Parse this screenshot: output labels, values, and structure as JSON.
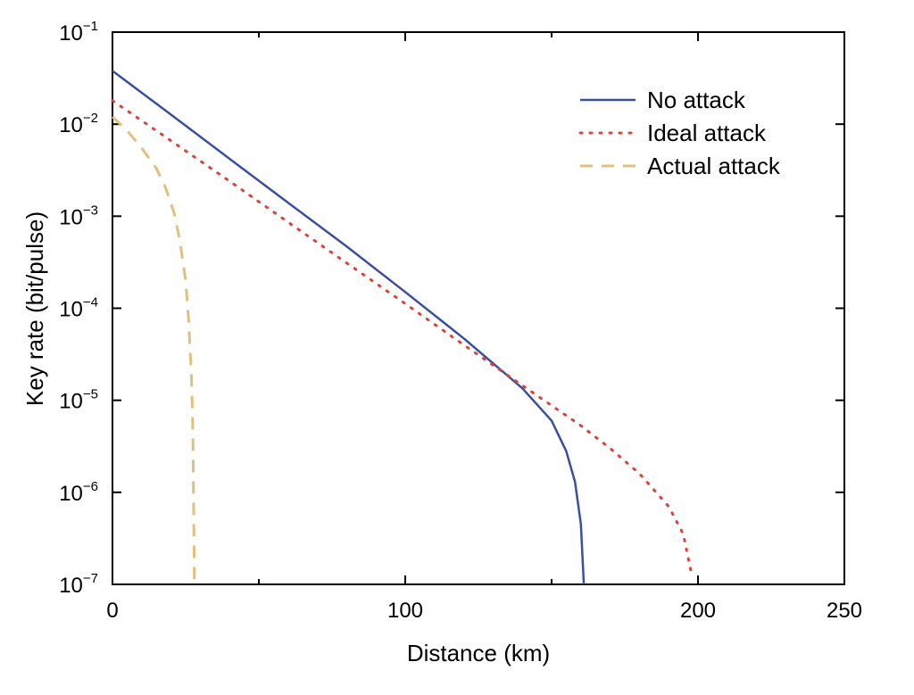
{
  "chart_data": {
    "type": "line",
    "title": "",
    "xlabel": "Distance (km)",
    "ylabel": "Key rate (bit/pulse)",
    "xlim": [
      0,
      250
    ],
    "ylim": [
      1e-07,
      0.1
    ],
    "yscale": "log",
    "xticks": [
      0,
      100,
      200,
      250
    ],
    "xtick_labels": [
      "0",
      "100",
      "200",
      "250"
    ],
    "yticks": [
      {
        "value": 0.1,
        "base": "10",
        "exp": "−1"
      },
      {
        "value": 0.01,
        "base": "10",
        "exp": "−2"
      },
      {
        "value": 0.001,
        "base": "10",
        "exp": "−3"
      },
      {
        "value": 0.0001,
        "base": "10",
        "exp": "−4"
      },
      {
        "value": 1e-05,
        "base": "10",
        "exp": "−5"
      },
      {
        "value": 1e-06,
        "base": "10",
        "exp": "−6"
      },
      {
        "value": 1e-07,
        "base": "10",
        "exp": "−7"
      }
    ],
    "grid": false,
    "legend_position": "top-right",
    "series": [
      {
        "name": "No attack",
        "color": "#3a4fa0",
        "style": "solid",
        "x": [
          0,
          20,
          40,
          60,
          80,
          100,
          120,
          140,
          150,
          155,
          158,
          160,
          161
        ],
        "y": [
          0.038,
          0.0127,
          0.0042,
          0.0014,
          0.00047,
          0.00015,
          4.7e-05,
          1.35e-05,
          6e-06,
          2.8e-06,
          1.3e-06,
          4.5e-07,
          1e-07
        ]
      },
      {
        "name": "Ideal attack",
        "color": "#d9453b",
        "style": "dotted",
        "x": [
          0,
          20,
          40,
          60,
          80,
          100,
          120,
          140,
          160,
          170,
          180,
          190,
          195,
          198
        ],
        "y": [
          0.018,
          0.0066,
          0.0024,
          0.00086,
          0.00031,
          0.000112,
          4e-05,
          1.45e-05,
          5.3e-06,
          3e-06,
          1.6e-06,
          7e-07,
          3.5e-07,
          1.2e-07
        ]
      },
      {
        "name": "Actual attack",
        "color": "#e0c080",
        "style": "dashed",
        "x": [
          0,
          5,
          10,
          15,
          18,
          21,
          23,
          25,
          26,
          27,
          27.5,
          28
        ],
        "y": [
          0.012,
          0.0085,
          0.0055,
          0.0033,
          0.0021,
          0.0011,
          0.00055,
          0.0002,
          7.5e-05,
          1.7e-05,
          4e-06,
          1e-07
        ]
      }
    ]
  }
}
